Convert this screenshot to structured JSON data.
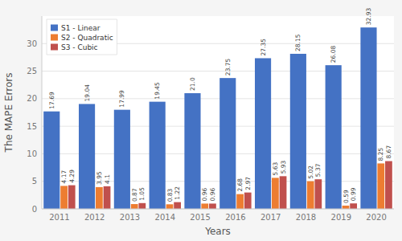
{
  "chart_data": {
    "type": "bar",
    "xlabel": "Years",
    "ylabel": "The MAPE Errors",
    "categories": [
      "2011",
      "2012",
      "2013",
      "2014",
      "2015",
      "2016",
      "2017",
      "2018",
      "2019",
      "2020"
    ],
    "series": [
      {
        "name": "S1 - Linear",
        "color": "#4472C4",
        "values": [
          17.69,
          19.04,
          17.99,
          19.45,
          21.0,
          23.75,
          27.35,
          28.15,
          26.08,
          32.93
        ],
        "value_labels": [
          "17.69",
          "19.04",
          "17.99",
          "19.45",
          "21.0",
          "23.75",
          "27.35",
          "28.15",
          "26.08",
          "32.93"
        ]
      },
      {
        "name": "S2 - Quadratic",
        "color": "#ED7D31",
        "values": [
          4.17,
          3.95,
          0.87,
          0.83,
          0.96,
          2.68,
          5.63,
          5.02,
          0.59,
          8.25
        ]
      },
      {
        "name": "S3 - Cubic",
        "color": "#C0504D",
        "values": [
          4.29,
          4.1,
          1.05,
          1.22,
          0.96,
          2.97,
          5.93,
          5.37,
          0.99,
          8.67
        ]
      }
    ],
    "ylim": [
      0,
      35
    ],
    "yticks": [
      0,
      5,
      10,
      15,
      20,
      25,
      30
    ],
    "grid": true,
    "legend": "upper left",
    "data_labels": true
  }
}
